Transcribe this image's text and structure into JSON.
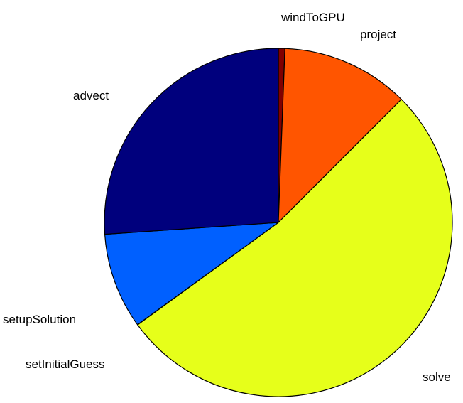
{
  "chart_data": {
    "type": "pie",
    "title": "",
    "start": "top",
    "direction": "clockwise",
    "slices": [
      {
        "label": "windToGPU",
        "value": 0.6,
        "color": "#800000"
      },
      {
        "label": "project",
        "value": 11.9,
        "color": "#ff5500"
      },
      {
        "label": "solve",
        "value": 52.5,
        "color": "#e6ff1a"
      },
      {
        "label": "setInitialGuess",
        "value": 0.02,
        "color": "#0055ff"
      },
      {
        "label": "setupSolution",
        "value": 8.9,
        "color": "#0060ff"
      },
      {
        "label": "advect",
        "value": 26.08,
        "color": "#00007d"
      }
    ],
    "legend": "none",
    "outline_color": "#000000"
  }
}
